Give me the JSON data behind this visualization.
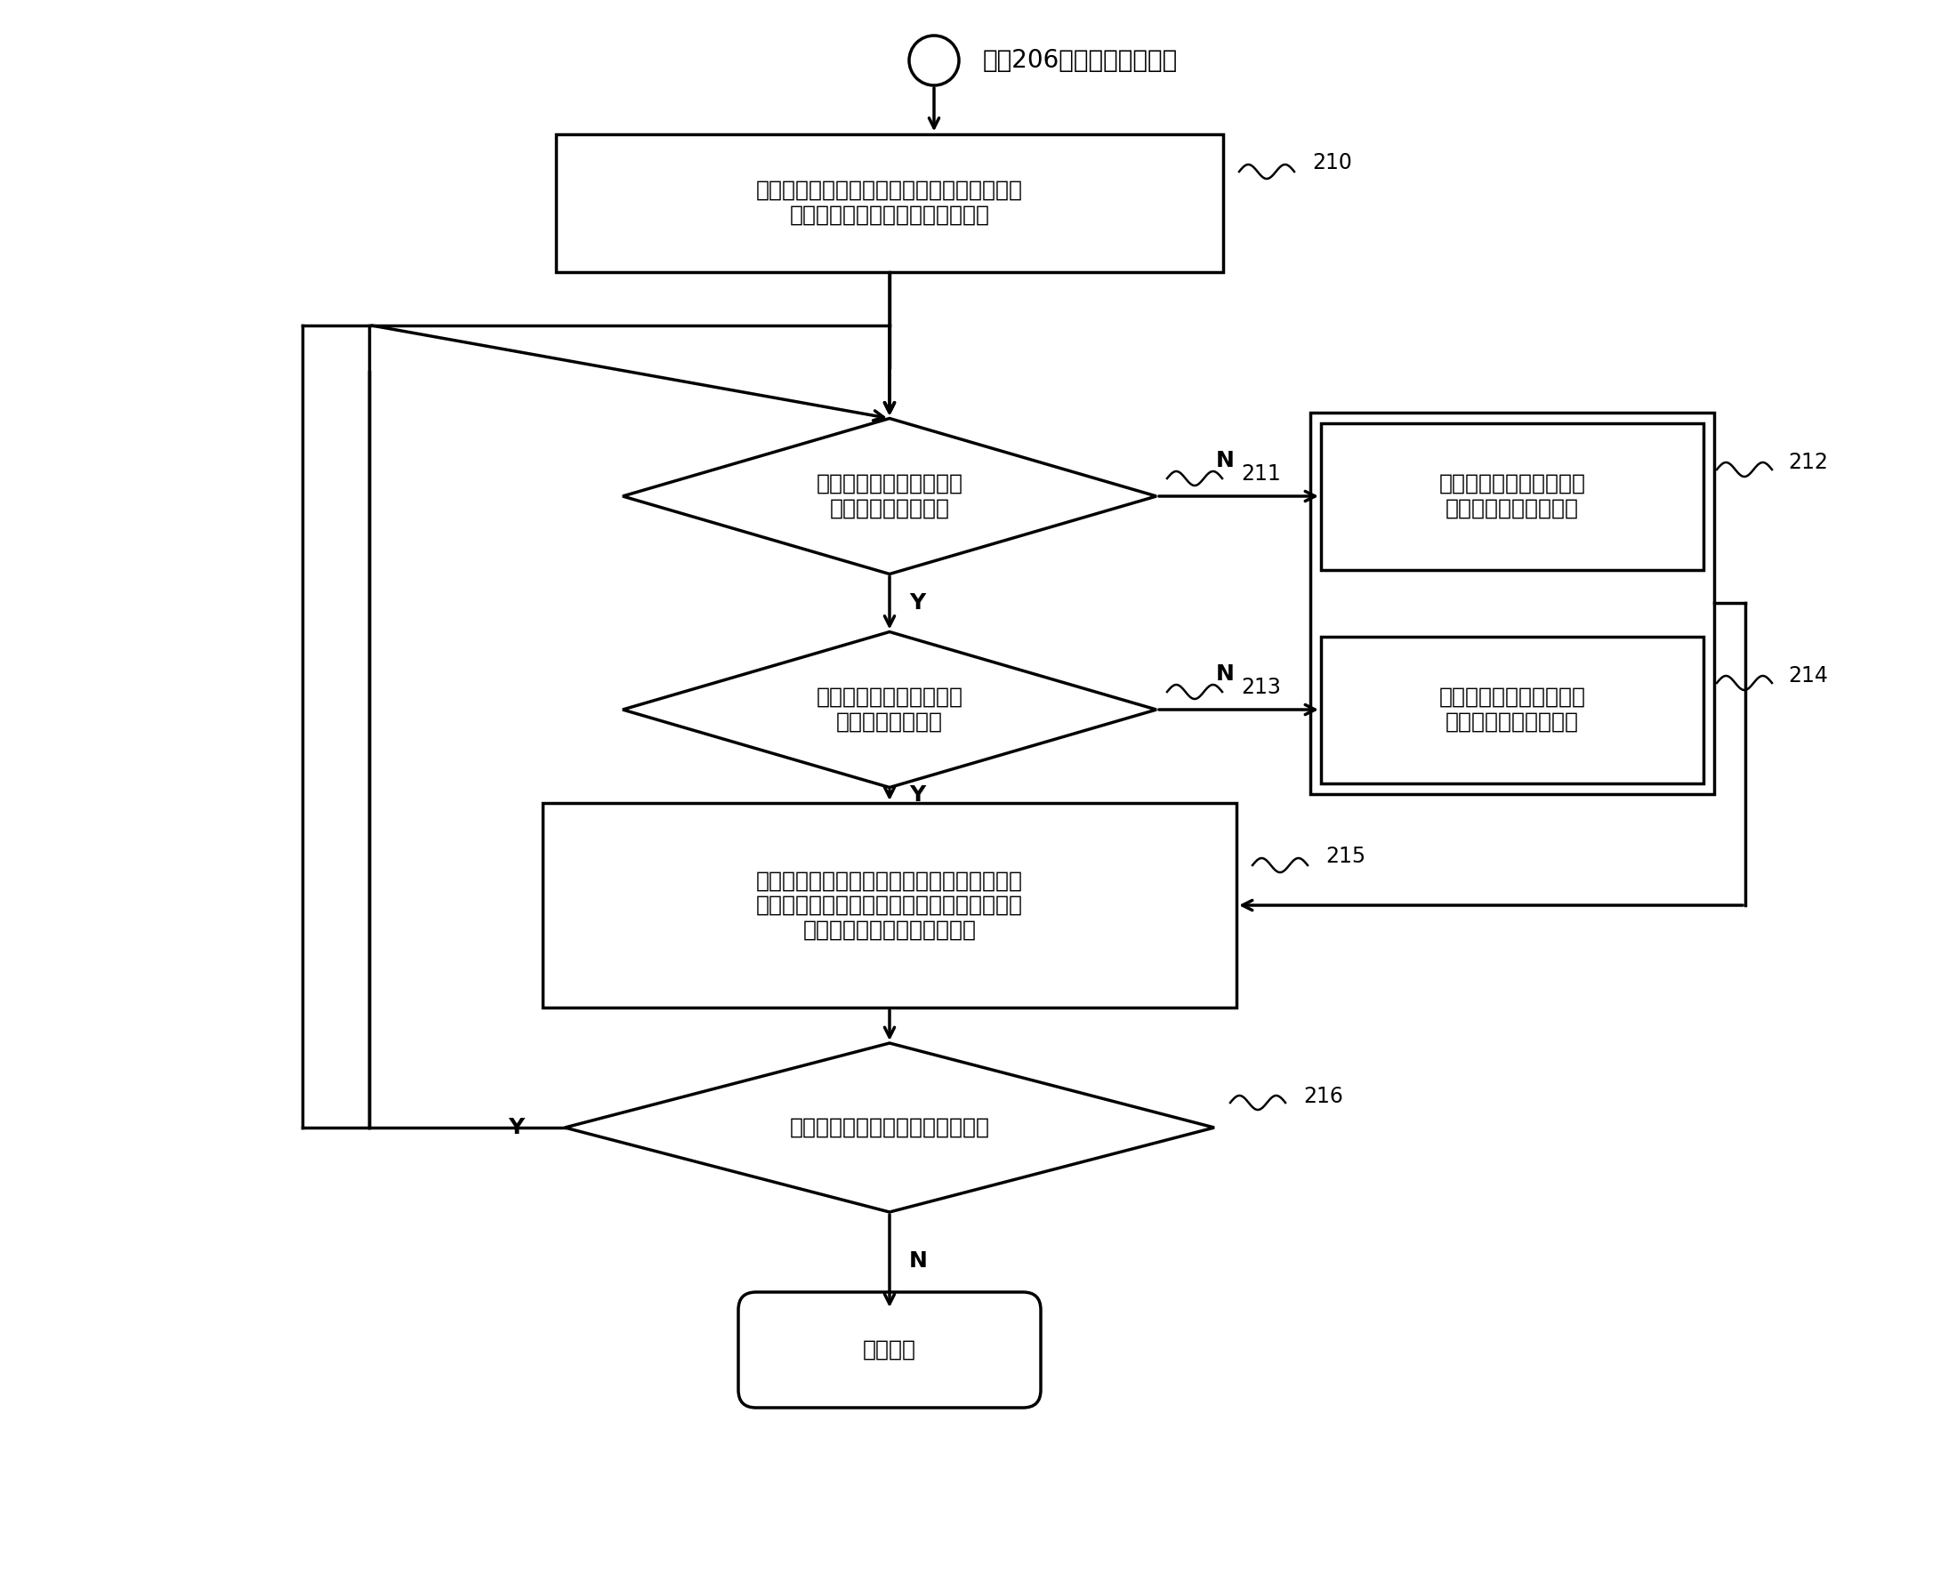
{
  "bg_color": "#ffffff",
  "title_text": "步骤206的判断结果为否时",
  "node_210_text": "根据报文入接口接入点归属的广播域查询映射\n规则表中与该广播域对应的接入点",
  "node_211_text": "当前查询到的接入点是否\n符合水平分割原则？",
  "node_212_text": "放弃以该接入点对应的封\n装方式封装报文并转发",
  "node_213_text": "当前查询到的接入点是否\n符合源过滤原则？",
  "node_214_text": "放弃以该接入点对应的封\n装方式封装报文并转发",
  "node_215_text": "根据当前查询到的接入点查询对应的接入类型\n和封装信息，对用户报文进行相应封装后，从\n该接入点对应的接口转发出去",
  "node_216_text": "查询到该广播域内的其它接入点？",
  "node_end_text": "转发结束",
  "label_210": "210",
  "label_211": "211",
  "label_212": "212",
  "label_213": "213",
  "label_214": "214",
  "label_215": "215",
  "label_216": "216",
  "lw": 2.5,
  "fontsize_main": 18,
  "fontsize_label": 17,
  "fontsize_yn": 18,
  "fontsize_title": 20
}
